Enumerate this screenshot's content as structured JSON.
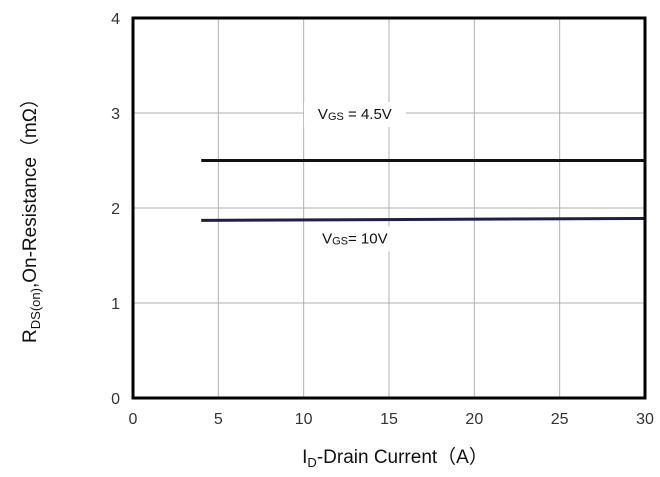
{
  "chart_data": {
    "type": "line",
    "xlabel": {
      "main": "I",
      "sub": "D",
      "rest": "-Drain Current（A）"
    },
    "ylabel": {
      "main": "R",
      "sub": "DS(on)",
      "rest": ",On-Resistance（mΩ）"
    },
    "xlim": [
      0,
      30
    ],
    "ylim": [
      0,
      4
    ],
    "x_ticks": [
      "0",
      "5",
      "10",
      "15",
      "20",
      "25",
      "30"
    ],
    "y_ticks": [
      "0",
      "1",
      "2",
      "3",
      "4"
    ],
    "grid": true,
    "series": [
      {
        "label": {
          "main": "V",
          "sub": "GS",
          "rest": " = 4.5V"
        },
        "color": "#111111",
        "x": [
          4,
          30
        ],
        "y": [
          2.5,
          2.5
        ]
      },
      {
        "label": {
          "main": "V",
          "sub": "GS",
          "rest": "= 10V"
        },
        "color": "#1c1f4a",
        "x": [
          4,
          30
        ],
        "y": [
          1.87,
          1.89
        ]
      }
    ]
  }
}
